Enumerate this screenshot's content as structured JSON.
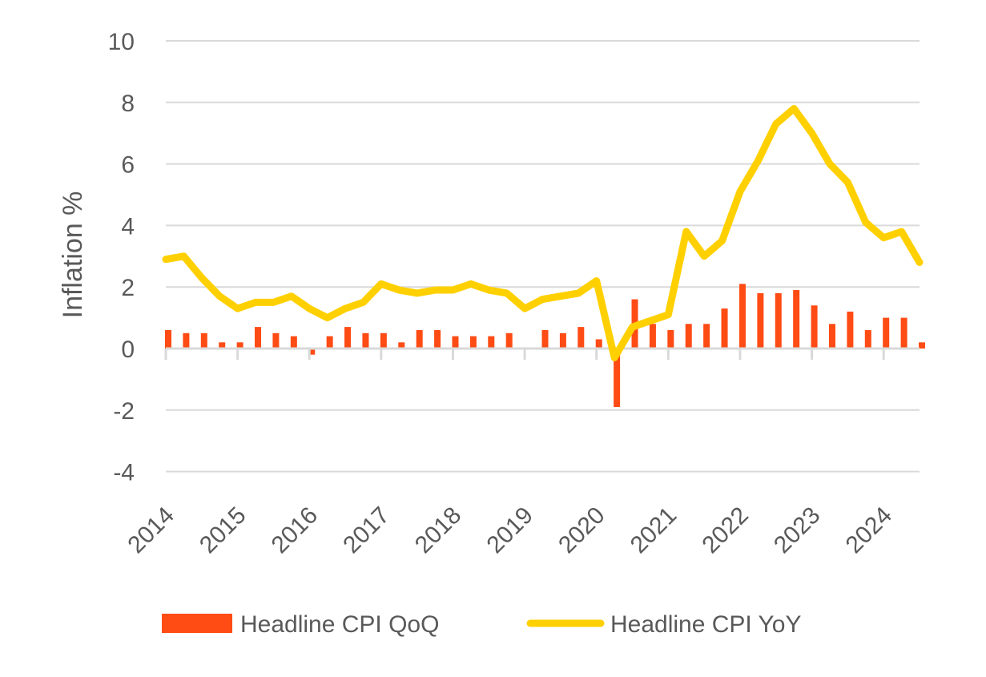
{
  "chart_data": {
    "type": "bar+line",
    "title": "",
    "xlabel": "",
    "ylabel": "Inflation %",
    "ylim": [
      -4,
      10
    ],
    "yticks": [
      -4,
      -2,
      0,
      2,
      4,
      6,
      8,
      10
    ],
    "grid": true,
    "legend_position": "bottom",
    "x_tick_labels": [
      "2014",
      "2015",
      "2016",
      "2017",
      "2018",
      "2019",
      "2020",
      "2021",
      "2022",
      "2023",
      "2024"
    ],
    "x_quarters": [
      "2014Q1",
      "2014Q2",
      "2014Q3",
      "2014Q4",
      "2015Q1",
      "2015Q2",
      "2015Q3",
      "2015Q4",
      "2016Q1",
      "2016Q2",
      "2016Q3",
      "2016Q4",
      "2017Q1",
      "2017Q2",
      "2017Q3",
      "2017Q4",
      "2018Q1",
      "2018Q2",
      "2018Q3",
      "2018Q4",
      "2019Q1",
      "2019Q2",
      "2019Q3",
      "2019Q4",
      "2020Q1",
      "2020Q2",
      "2020Q3",
      "2020Q4",
      "2021Q1",
      "2021Q2",
      "2021Q3",
      "2021Q4",
      "2022Q1",
      "2022Q2",
      "2022Q3",
      "2022Q4",
      "2023Q1",
      "2023Q2",
      "2023Q3",
      "2023Q4",
      "2024Q1",
      "2024Q2",
      "2024Q3"
    ],
    "series": [
      {
        "name": "Headline CPI QoQ",
        "type": "bar",
        "color": "#ff4b14",
        "values": [
          0.6,
          0.5,
          0.5,
          0.2,
          0.2,
          0.7,
          0.5,
          0.4,
          -0.2,
          0.4,
          0.7,
          0.5,
          0.5,
          0.2,
          0.6,
          0.6,
          0.4,
          0.4,
          0.4,
          0.5,
          0.0,
          0.6,
          0.5,
          0.7,
          0.3,
          -1.9,
          1.6,
          0.8,
          0.6,
          0.8,
          0.8,
          1.3,
          2.1,
          1.8,
          1.8,
          1.9,
          1.4,
          0.8,
          1.2,
          0.6,
          1.0,
          1.0,
          0.2
        ]
      },
      {
        "name": "Headline CPI YoY",
        "type": "line",
        "color": "#ffd000",
        "values": [
          2.9,
          3.0,
          2.3,
          1.7,
          1.3,
          1.5,
          1.5,
          1.7,
          1.3,
          1.0,
          1.3,
          1.5,
          2.1,
          1.9,
          1.8,
          1.9,
          1.9,
          2.1,
          1.9,
          1.8,
          1.3,
          1.6,
          1.7,
          1.8,
          2.2,
          -0.3,
          0.7,
          0.9,
          1.1,
          3.8,
          3.0,
          3.5,
          5.1,
          6.1,
          7.3,
          7.8,
          7.0,
          6.0,
          5.4,
          4.1,
          3.6,
          3.8,
          2.8
        ]
      }
    ]
  }
}
